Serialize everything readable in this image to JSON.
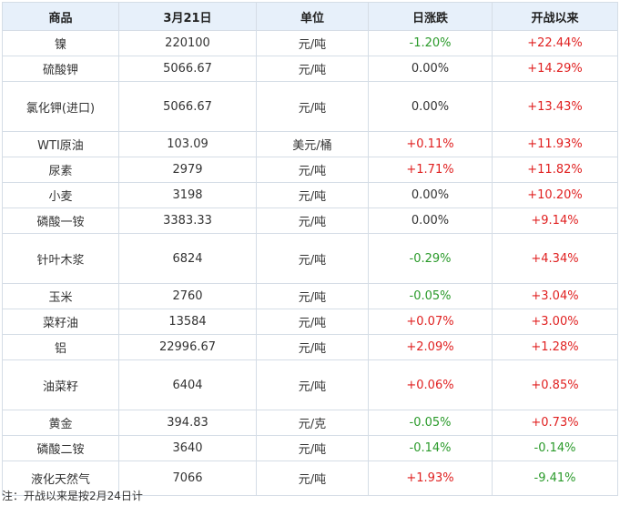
{
  "header": {
    "name": "商品",
    "date": "3月21日",
    "unit": "单位",
    "daily": "日涨跌",
    "since": "开战以来"
  },
  "rows": [
    {
      "name": "镍",
      "price": "220100",
      "unit": "元/吨",
      "daily": "-1.20%",
      "since": "+22.44%"
    },
    {
      "name": "硫酸钾",
      "price": "5066.67",
      "unit": "元/吨",
      "daily": "0.00%",
      "since": "+14.29%"
    },
    {
      "name": "氯化钾(进口)",
      "price": "5066.67",
      "unit": "元/吨",
      "daily": "0.00%",
      "since": "+13.43%"
    },
    {
      "name": "WTI原油",
      "price": "103.09",
      "unit": "美元/桶",
      "daily": "+0.11%",
      "since": "+11.93%"
    },
    {
      "name": "尿素",
      "price": "2979",
      "unit": "元/吨",
      "daily": "+1.71%",
      "since": "+11.82%"
    },
    {
      "name": "小麦",
      "price": "3198",
      "unit": "元/吨",
      "daily": "0.00%",
      "since": "+10.20%"
    },
    {
      "name": "磷酸一铵",
      "price": "3383.33",
      "unit": "元/吨",
      "daily": "0.00%",
      "since": "+9.14%"
    },
    {
      "name": "针叶木浆",
      "price": "6824",
      "unit": "元/吨",
      "daily": "-0.29%",
      "since": "+4.34%"
    },
    {
      "name": "玉米",
      "price": "2760",
      "unit": "元/吨",
      "daily": "-0.05%",
      "since": "+3.04%"
    },
    {
      "name": "菜籽油",
      "price": "13584",
      "unit": "元/吨",
      "daily": "+0.07%",
      "since": "+3.00%"
    },
    {
      "name": "铝",
      "price": "22996.67",
      "unit": "元/吨",
      "daily": "+2.09%",
      "since": "+1.28%"
    },
    {
      "name": "油菜籽",
      "price": "6404",
      "unit": "元/吨",
      "daily": "+0.06%",
      "since": "+0.85%"
    },
    {
      "name": "黄金",
      "price": "394.83",
      "unit": "元/克",
      "daily": "-0.05%",
      "since": "+0.73%"
    },
    {
      "name": "磷酸二铵",
      "price": "3640",
      "unit": "元/吨",
      "daily": "-0.14%",
      "since": "-0.14%"
    },
    {
      "name": "液化天然气",
      "price": "7066",
      "unit": "元/吨",
      "daily": "+1.93%",
      "since": "-9.41%"
    }
  ],
  "footnote": "注：开战以来是按2月24日计",
  "colors": {
    "up": "#e02020",
    "down": "#2a9a2a",
    "header_bg": "#e7f0fa",
    "border": "#d5dde6"
  }
}
